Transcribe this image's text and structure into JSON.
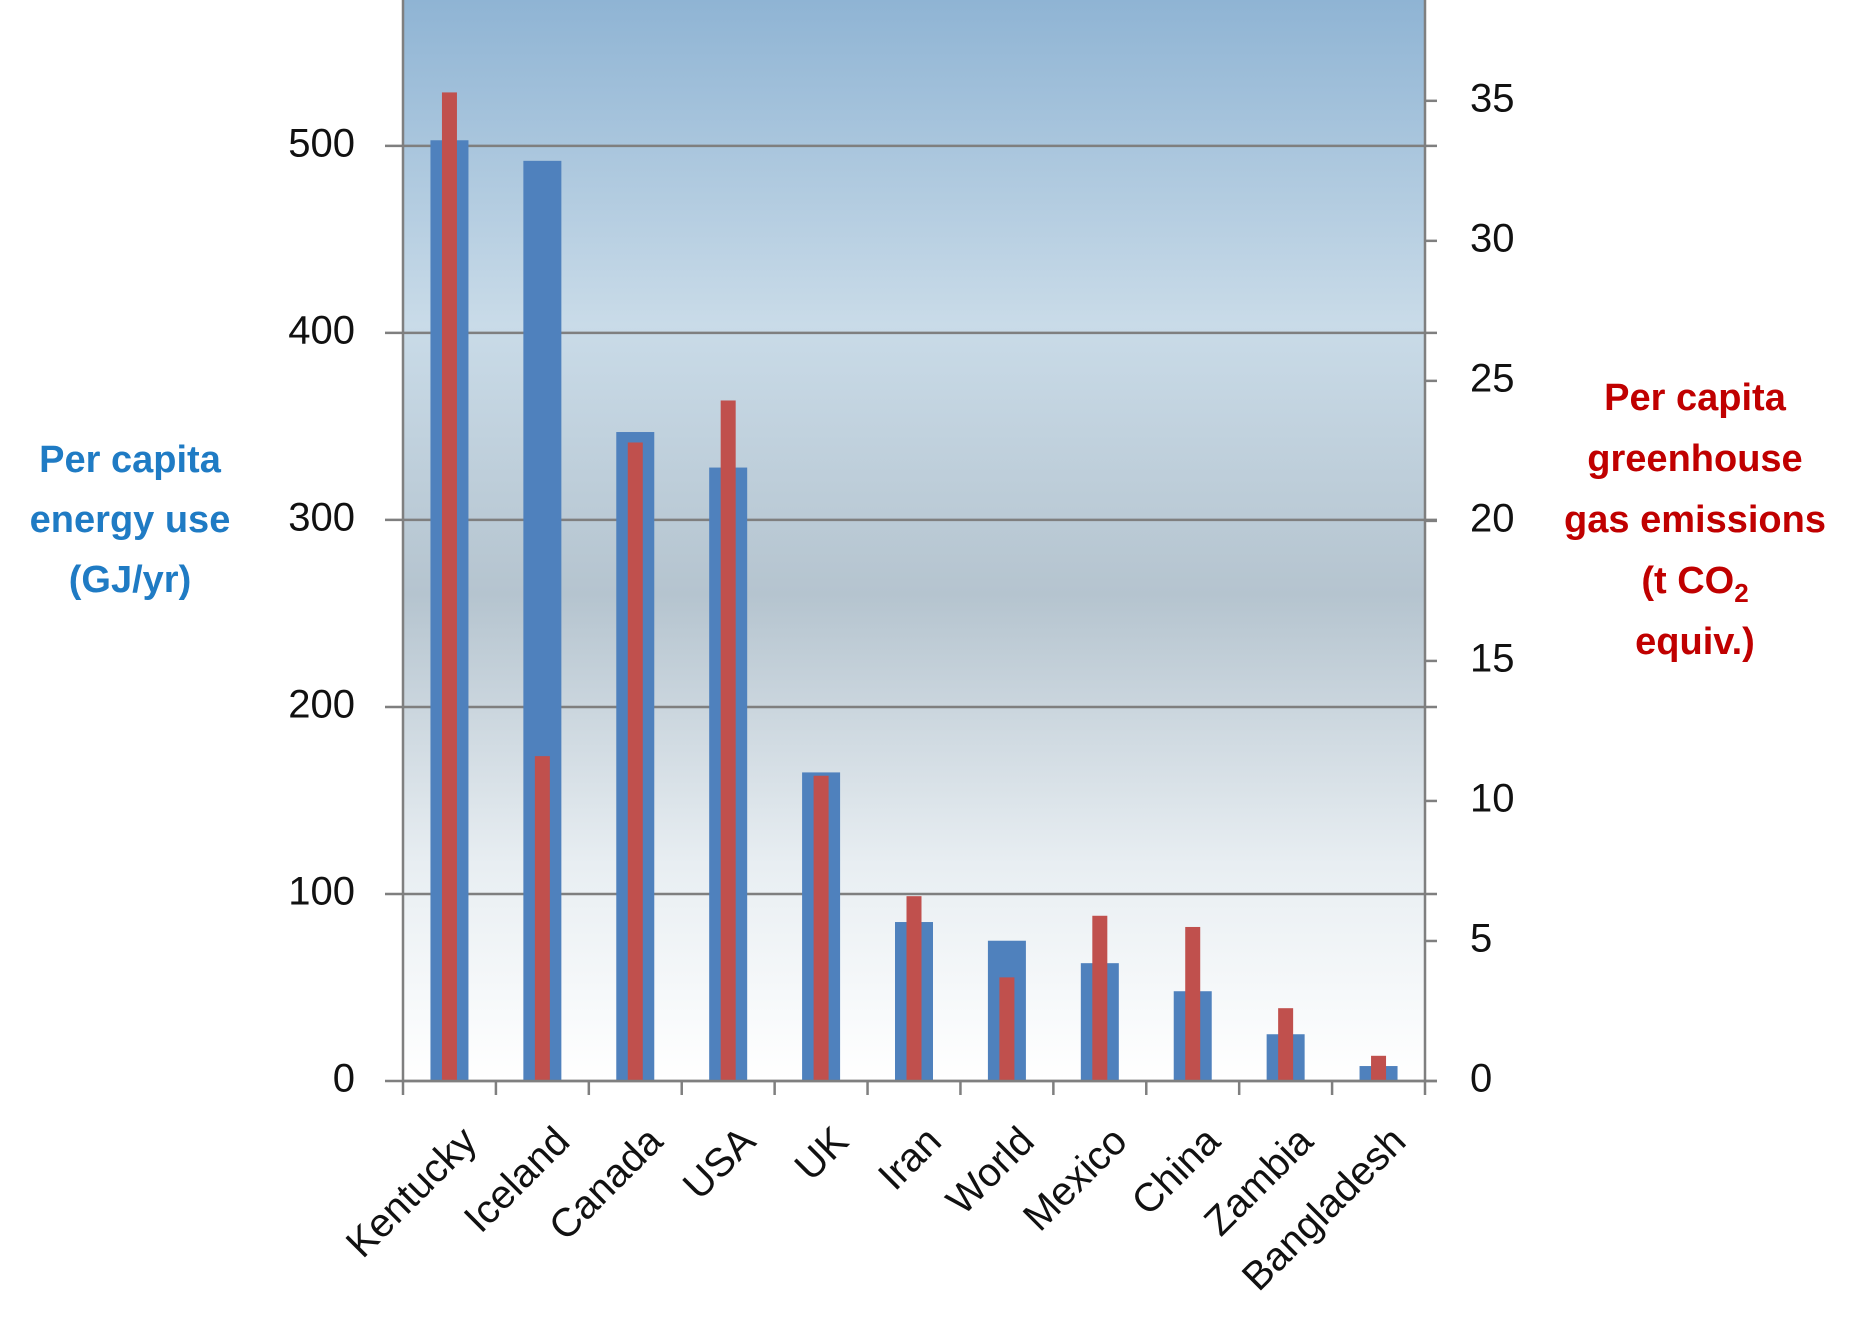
{
  "chart_data": {
    "type": "bar",
    "y_label": [
      "Per capita",
      "energy  use",
      "(GJ/yr)"
    ],
    "y2_label": [
      "Per capita",
      "greenhouse",
      "gas emissions",
      [
        "(t CO",
        "2"
      ],
      "equiv.)"
    ],
    "y_label_color": "#1f7bc4",
    "y2_label_color": "#c00000",
    "categories": [
      "Kentucky",
      "Iceland",
      "Canada",
      "USA",
      "UK",
      "Iran",
      "World",
      "Mexico",
      "China",
      "Zambia",
      "Bangladesh"
    ],
    "series": [
      {
        "color": "#4f81bd",
        "values": [
          503,
          492,
          347,
          328,
          165,
          85,
          75,
          63,
          48,
          25,
          8
        ]
      },
      {
        "color": "#c0504d",
        "axis": "y2",
        "values": [
          35.3,
          11.6,
          22.8,
          24.3,
          10.9,
          6.6,
          3.7,
          5.9,
          5.5,
          2.6,
          0.9
        ]
      }
    ],
    "ylim": [
      0,
      578
    ],
    "yticks": [
      0,
      100,
      200,
      300,
      400,
      500
    ],
    "y2lim": [
      0,
      38.6
    ],
    "y2ticks": [
      0,
      5,
      10,
      15,
      20,
      25,
      30,
      35
    ],
    "grid": true
  }
}
